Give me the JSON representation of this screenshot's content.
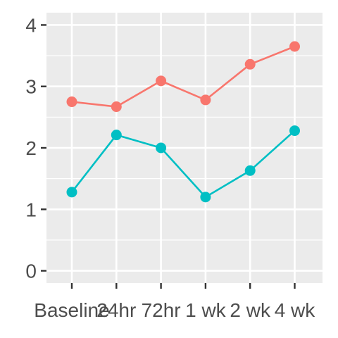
{
  "chart_data": {
    "type": "line",
    "categories": [
      "Baseline",
      "24hr",
      "72hr",
      "1 wk",
      "2 wk",
      "4 wk"
    ],
    "series": [
      {
        "values": [
          2.75,
          2.67,
          3.09,
          2.78,
          3.36,
          3.65
        ],
        "color": "#F8766D"
      },
      {
        "values": [
          1.28,
          2.21,
          2.0,
          1.2,
          1.63,
          2.28
        ],
        "color": "#00BFC4"
      }
    ],
    "ylim": [
      -0.2,
      4.2
    ],
    "yticks": [
      0,
      1,
      2,
      3,
      4
    ],
    "xlabel": "",
    "ylabel": "",
    "grid": true,
    "panel_background": "#EBEBEB",
    "legend": "none"
  }
}
